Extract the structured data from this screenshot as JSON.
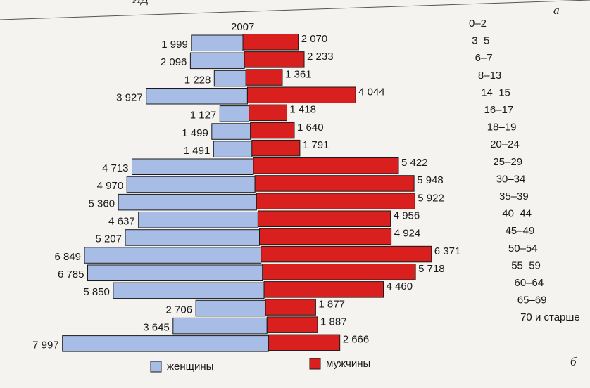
{
  "page": {
    "top_clip": "ИД",
    "panel_letter_top": "а",
    "panel_letter_bottom": "б"
  },
  "colors": {
    "women": "#a7bde6",
    "men": "#d9201e",
    "outline": "#1a1a1a"
  },
  "chart_data": {
    "type": "bar",
    "orientation": "horizontal",
    "title": "2007",
    "categories": [
      "0–2",
      "3–5",
      "6–7",
      "8–13",
      "14–15",
      "16–17",
      "18–19",
      "20–24",
      "25–29",
      "30–34",
      "35–39",
      "40–44",
      "45–49",
      "50–54",
      "55–59",
      "60–64",
      "65–69",
      "70 и старше"
    ],
    "series": [
      {
        "name": "женщины",
        "side": "left",
        "values": [
          1999,
          2096,
          1228,
          3927,
          1127,
          1499,
          1491,
          4713,
          4970,
          5360,
          4637,
          5207,
          6849,
          6785,
          5850,
          2706,
          3645,
          7997
        ],
        "value_labels": [
          "1 999",
          "2 096",
          "1 228",
          "3 927",
          "1 127",
          "1 499",
          "1 491",
          "4 713",
          "4 970",
          "5 360",
          "4 637",
          "5 207",
          "6 849",
          "6 785",
          "5 850",
          "2 706",
          "3 645",
          "7 997"
        ]
      },
      {
        "name": "мужчины",
        "side": "right",
        "values": [
          2070,
          2233,
          1361,
          4044,
          1418,
          1640,
          1791,
          5422,
          5948,
          5922,
          4956,
          4924,
          6371,
          5718,
          4460,
          1877,
          1887,
          2666
        ],
        "value_labels": [
          "2 070",
          "2 233",
          "1 361",
          "4 044",
          "1 418",
          "1 640",
          "1 791",
          "5 422",
          "5 948",
          "5 922",
          "4 956",
          "4 924",
          "6 371",
          "5 718",
          "4 460",
          "1 877",
          "1 887",
          "2 666"
        ]
      }
    ],
    "legend": {
      "placement": "bottom",
      "items": [
        "женщины",
        "мужчины"
      ]
    }
  }
}
